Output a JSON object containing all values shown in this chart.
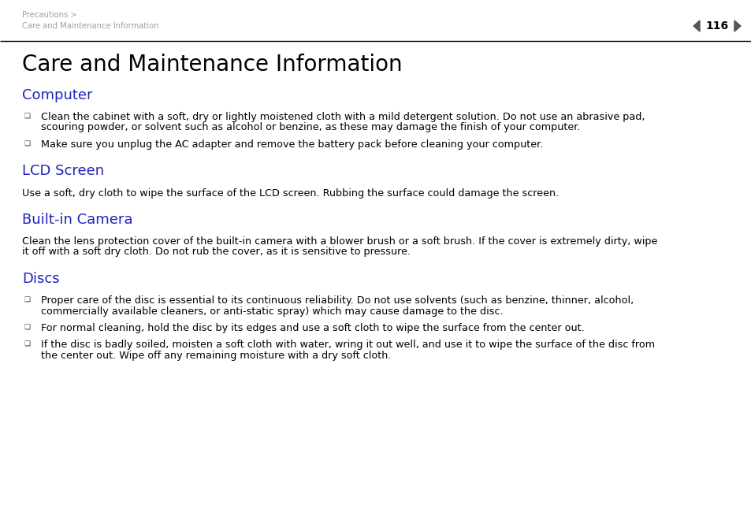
{
  "bg_color": "#ffffff",
  "header_breadcrumb_line1": "Precautions >",
  "header_breadcrumb_line2": "Care and Maintenance Information",
  "header_page_num": "116",
  "header_color": "#a0a0a0",
  "divider_color": "#000000",
  "title": "Care and Maintenance Information",
  "title_fontsize": 20,
  "title_color": "#000000",
  "section_color": "#2222bb",
  "section_fontsize": 13,
  "body_fontsize": 9.2,
  "body_color": "#000000",
  "sections": [
    {
      "heading": "Computer",
      "bullets": [
        "Clean the cabinet with a soft, dry or lightly moistened cloth with a mild detergent solution. Do not use an abrasive pad,\nscouring powder, or solvent such as alcohol or benzine, as these may damage the finish of your computer.",
        "Make sure you unplug the AC adapter and remove the battery pack before cleaning your computer."
      ],
      "body": null
    },
    {
      "heading": "LCD Screen",
      "bullets": null,
      "body": "Use a soft, dry cloth to wipe the surface of the LCD screen. Rubbing the surface could damage the screen."
    },
    {
      "heading": "Built-in Camera",
      "bullets": null,
      "body": "Clean the lens protection cover of the built-in camera with a blower brush or a soft brush. If the cover is extremely dirty, wipe\nit off with a soft dry cloth. Do not rub the cover, as it is sensitive to pressure."
    },
    {
      "heading": "Discs",
      "bullets": [
        "Proper care of the disc is essential to its continuous reliability. Do not use solvents (such as benzine, thinner, alcohol,\ncommercially available cleaners, or anti-static spray) which may cause damage to the disc.",
        "For normal cleaning, hold the disc by its edges and use a soft cloth to wipe the surface from the center out.",
        "If the disc is badly soiled, moisten a soft cloth with water, wring it out well, and use it to wipe the surface of the disc from\nthe center out. Wipe off any remaining moisture with a dry soft cloth."
      ],
      "body": null
    }
  ]
}
